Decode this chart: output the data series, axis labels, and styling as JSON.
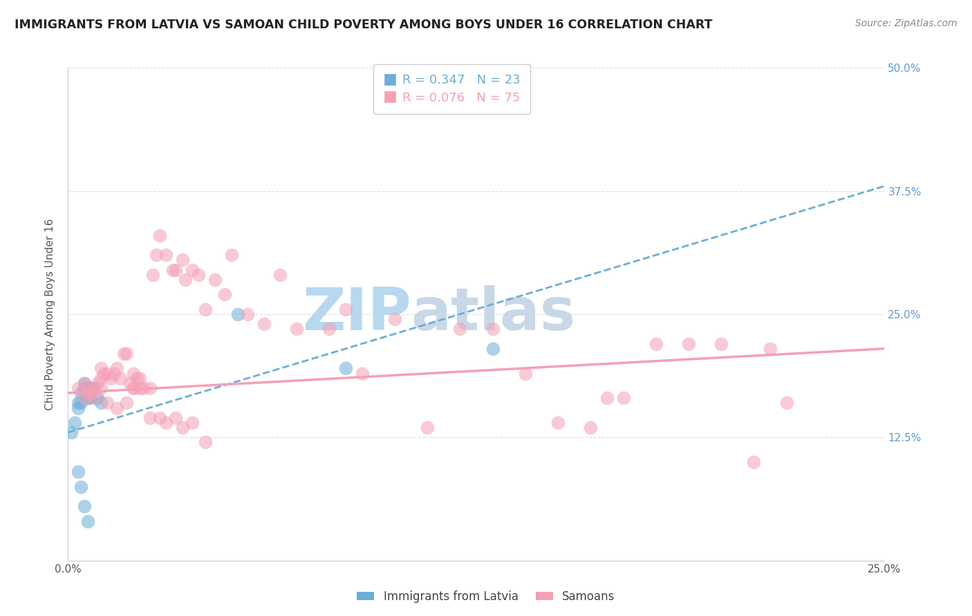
{
  "title": "IMMIGRANTS FROM LATVIA VS SAMOAN CHILD POVERTY AMONG BOYS UNDER 16 CORRELATION CHART",
  "source": "Source: ZipAtlas.com",
  "ylabel": "Child Poverty Among Boys Under 16",
  "xlim": [
    0.0,
    0.25
  ],
  "ylim": [
    0.0,
    0.5
  ],
  "legend_label1": "Immigrants from Latvia",
  "legend_label2": "Samoans",
  "color_blue": "#6baed6",
  "color_pink": "#f4a0b5",
  "watermark": "ZIPatlas",
  "watermark_color": "#cce5f5",
  "blue_scatter_x": [
    0.001,
    0.002,
    0.003,
    0.003,
    0.004,
    0.004,
    0.005,
    0.005,
    0.005,
    0.006,
    0.006,
    0.007,
    0.007,
    0.008,
    0.009,
    0.01,
    0.003,
    0.004,
    0.005,
    0.006,
    0.052,
    0.085,
    0.13
  ],
  "blue_scatter_y": [
    0.13,
    0.14,
    0.155,
    0.16,
    0.16,
    0.17,
    0.17,
    0.175,
    0.18,
    0.175,
    0.165,
    0.175,
    0.165,
    0.175,
    0.165,
    0.16,
    0.09,
    0.075,
    0.055,
    0.04,
    0.25,
    0.195,
    0.215
  ],
  "pink_scatter_x": [
    0.003,
    0.005,
    0.006,
    0.007,
    0.008,
    0.009,
    0.01,
    0.01,
    0.011,
    0.012,
    0.013,
    0.014,
    0.015,
    0.016,
    0.017,
    0.018,
    0.019,
    0.02,
    0.02,
    0.021,
    0.022,
    0.023,
    0.025,
    0.026,
    0.027,
    0.028,
    0.03,
    0.032,
    0.033,
    0.035,
    0.036,
    0.038,
    0.04,
    0.042,
    0.045,
    0.048,
    0.05,
    0.055,
    0.06,
    0.065,
    0.07,
    0.08,
    0.085,
    0.09,
    0.1,
    0.11,
    0.12,
    0.13,
    0.14,
    0.15,
    0.16,
    0.165,
    0.17,
    0.18,
    0.19,
    0.2,
    0.21,
    0.215,
    0.22,
    0.005,
    0.006,
    0.008,
    0.01,
    0.012,
    0.015,
    0.018,
    0.02,
    0.022,
    0.025,
    0.028,
    0.03,
    0.033,
    0.035,
    0.038,
    0.042
  ],
  "pink_scatter_y": [
    0.175,
    0.18,
    0.17,
    0.17,
    0.175,
    0.18,
    0.185,
    0.195,
    0.19,
    0.19,
    0.185,
    0.19,
    0.195,
    0.185,
    0.21,
    0.21,
    0.18,
    0.19,
    0.175,
    0.185,
    0.175,
    0.175,
    0.175,
    0.29,
    0.31,
    0.33,
    0.31,
    0.295,
    0.295,
    0.305,
    0.285,
    0.295,
    0.29,
    0.255,
    0.285,
    0.27,
    0.31,
    0.25,
    0.24,
    0.29,
    0.235,
    0.235,
    0.255,
    0.19,
    0.245,
    0.135,
    0.235,
    0.235,
    0.19,
    0.14,
    0.135,
    0.165,
    0.165,
    0.22,
    0.22,
    0.22,
    0.1,
    0.215,
    0.16,
    0.165,
    0.175,
    0.165,
    0.175,
    0.16,
    0.155,
    0.16,
    0.175,
    0.185,
    0.145,
    0.145,
    0.14,
    0.145,
    0.135,
    0.14,
    0.12
  ],
  "blue_trendline_x": [
    0.0,
    0.25
  ],
  "blue_trendline_y": [
    0.13,
    0.38
  ],
  "pink_trendline_x": [
    0.0,
    0.25
  ],
  "pink_trendline_y": [
    0.17,
    0.215
  ],
  "grid_color": "#dddddd",
  "ytick_positions": [
    0.0,
    0.125,
    0.25,
    0.375,
    0.5
  ],
  "ytick_labels_right": [
    "",
    "12.5%",
    "25.0%",
    "37.5%",
    "50.0%"
  ],
  "xtick_positions": [
    0.0,
    0.05,
    0.1,
    0.15,
    0.2,
    0.25
  ],
  "xtick_labels": [
    "0.0%",
    "",
    "",
    "",
    "",
    "25.0%"
  ]
}
